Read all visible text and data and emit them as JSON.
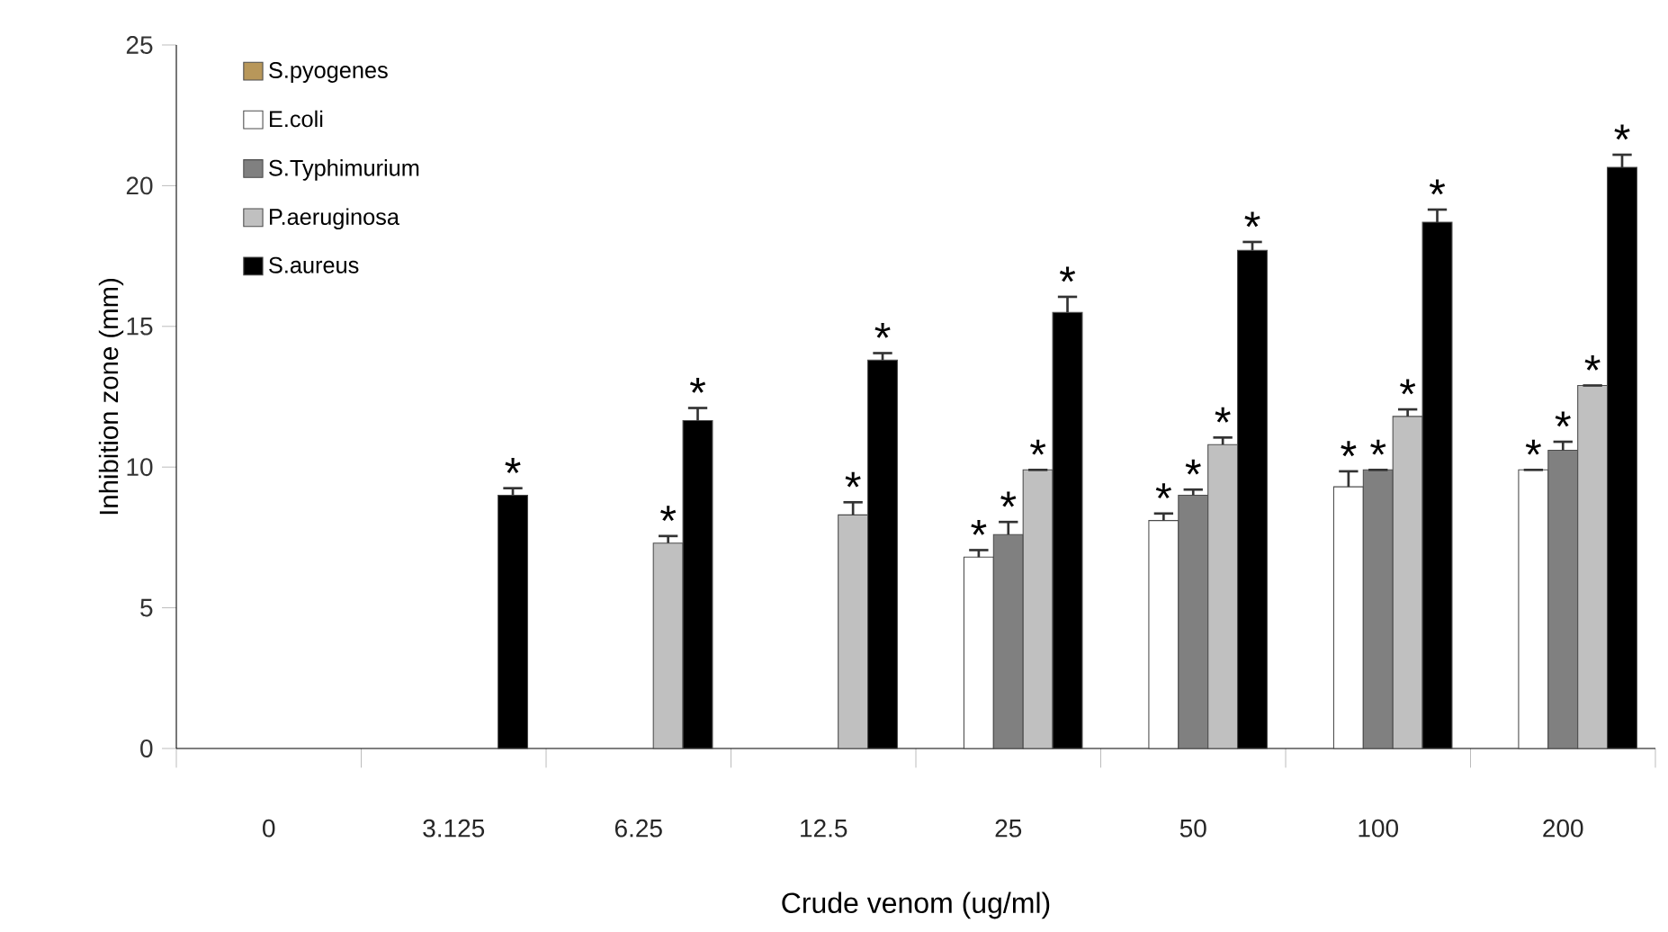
{
  "chart_data": {
    "type": "bar",
    "xlabel": "Crude venom (ug/ml)",
    "ylabel": "Inhibition zone (mm)",
    "categories": [
      "0",
      "3.125",
      "6.25",
      "12.5",
      "25",
      "50",
      "100",
      "200"
    ],
    "ylim": [
      0,
      25
    ],
    "yticks": [
      0,
      5,
      10,
      15,
      20,
      25
    ],
    "legend": "top left",
    "series": [
      {
        "name": "S.pyogenes",
        "color": "#b8975a",
        "values": [
          null,
          null,
          null,
          null,
          null,
          null,
          null,
          null
        ]
      },
      {
        "name": "E.coli",
        "color": "#ffffff",
        "values": [
          null,
          null,
          null,
          null,
          6.8,
          8.1,
          9.3,
          9.9
        ],
        "errors": [
          null,
          null,
          null,
          null,
          0.25,
          0.25,
          0.55,
          null
        ]
      },
      {
        "name": "S.Typhimurium",
        "color": "#808080",
        "values": [
          null,
          null,
          null,
          null,
          7.6,
          9.0,
          9.9,
          10.6
        ],
        "errors": [
          null,
          null,
          null,
          null,
          0.45,
          0.2,
          null,
          0.3
        ]
      },
      {
        "name": "P.aeruginosa",
        "color": "#c0c0c0",
        "values": [
          null,
          null,
          7.3,
          8.3,
          9.9,
          10.8,
          11.8,
          12.9
        ],
        "errors": [
          null,
          null,
          0.25,
          0.45,
          null,
          0.25,
          0.25,
          null
        ]
      },
      {
        "name": "S.aureus",
        "color": "#000000",
        "values": [
          null,
          9.0,
          11.65,
          13.8,
          15.5,
          17.7,
          18.7,
          20.65
        ],
        "errors": [
          null,
          0.25,
          0.45,
          0.25,
          0.55,
          0.3,
          0.45,
          0.45
        ]
      }
    ],
    "annotations": [
      "*",
      "*",
      "*",
      "*",
      "*",
      "*",
      "*",
      "*",
      "*",
      "*",
      "*",
      "*",
      "*",
      "*",
      "*",
      "*",
      "*",
      "*",
      "*",
      "*",
      "*"
    ]
  }
}
